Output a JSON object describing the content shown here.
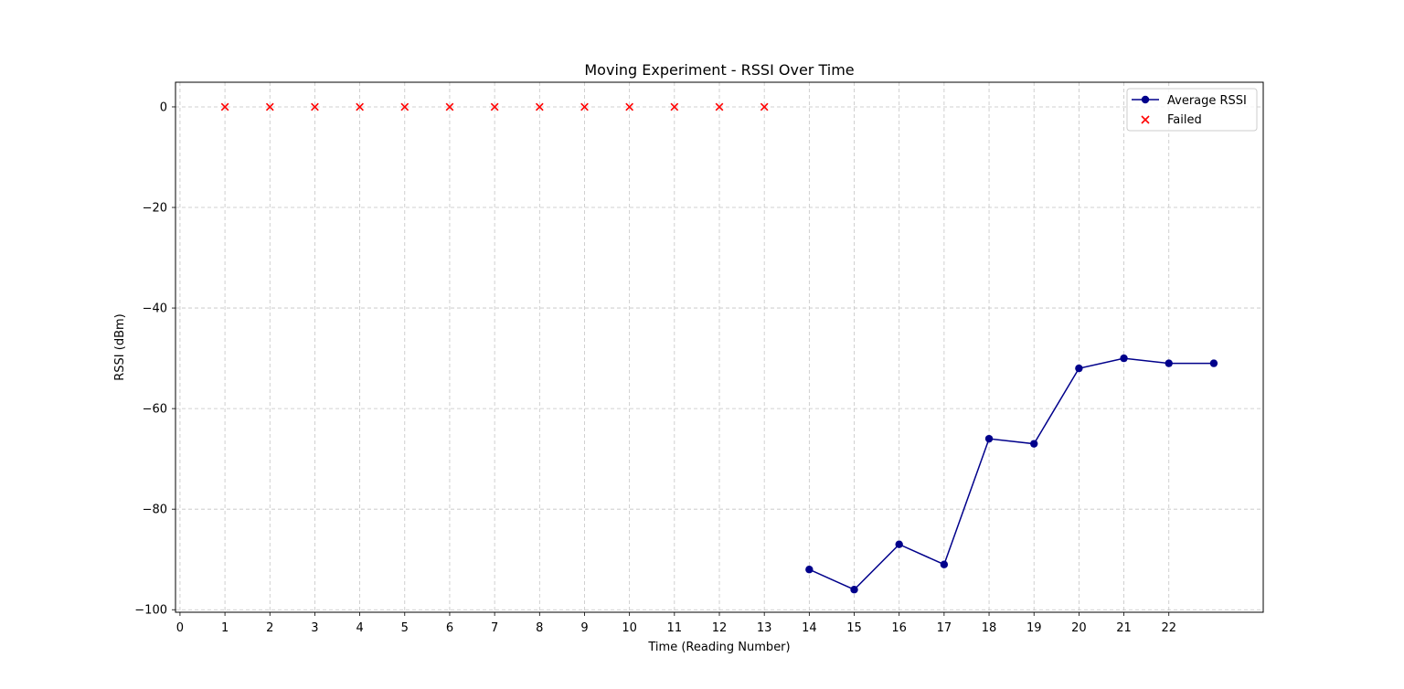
{
  "chart_data": {
    "type": "line",
    "title": "Moving Experiment - RSSI Over Time",
    "xlabel": "Time (Reading Number)",
    "ylabel": "RSSI (dBm)",
    "xlim": [
      -0.1,
      24.1
    ],
    "ylim": [
      -100.5,
      4.9
    ],
    "x_ticks": [
      0,
      1,
      2,
      3,
      4,
      5,
      6,
      7,
      8,
      9,
      10,
      11,
      12,
      13,
      14,
      15,
      16,
      17,
      18,
      19,
      20,
      21,
      22
    ],
    "y_ticks": [
      0,
      -20,
      -40,
      -60,
      -80,
      -100
    ],
    "y_tick_labels": [
      "0",
      "−20",
      "−40",
      "−60",
      "−80",
      "−100"
    ],
    "grid": true,
    "legend_position": "top-right",
    "series": [
      {
        "name": "Average RSSI",
        "kind": "line",
        "marker": "circle",
        "color": "#00008b",
        "x": [
          14,
          15,
          16,
          17,
          18,
          19,
          20,
          21,
          22,
          23
        ],
        "y": [
          -92,
          -96,
          -87,
          -91,
          -66,
          -67,
          -52,
          -50,
          -51,
          -51
        ]
      },
      {
        "name": "Failed",
        "kind": "scatter",
        "marker": "x",
        "color": "#ff0000",
        "x": [
          1,
          2,
          3,
          4,
          5,
          6,
          7,
          8,
          9,
          10,
          11,
          12,
          13
        ],
        "y": [
          0,
          0,
          0,
          0,
          0,
          0,
          0,
          0,
          0,
          0,
          0,
          0,
          0
        ]
      }
    ]
  }
}
